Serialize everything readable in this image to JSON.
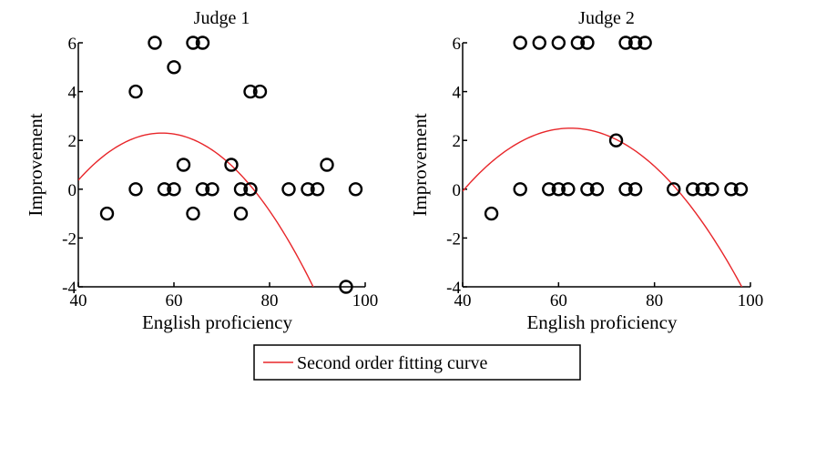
{
  "legend": {
    "label": "Second order fitting curve",
    "color": "#e8262a"
  },
  "chart_data": [
    {
      "type": "scatter",
      "title": "Judge 1",
      "xlabel": "English proficiency",
      "ylabel": "Improvement",
      "xlim": [
        40,
        100
      ],
      "ylim": [
        -4,
        6
      ],
      "xticks": [
        40,
        60,
        80,
        100
      ],
      "yticks": [
        -4,
        -2,
        0,
        2,
        4,
        6
      ],
      "points": [
        [
          46,
          -1
        ],
        [
          52,
          4
        ],
        [
          52,
          0
        ],
        [
          56,
          6
        ],
        [
          58,
          0
        ],
        [
          60,
          5
        ],
        [
          60,
          0
        ],
        [
          62,
          1
        ],
        [
          64,
          6
        ],
        [
          64,
          -1
        ],
        [
          66,
          6
        ],
        [
          66,
          0
        ],
        [
          68,
          0
        ],
        [
          72,
          1
        ],
        [
          74,
          0
        ],
        [
          74,
          -1
        ],
        [
          76,
          4
        ],
        [
          76,
          0
        ],
        [
          78,
          4
        ],
        [
          84,
          0
        ],
        [
          88,
          0
        ],
        [
          90,
          0
        ],
        [
          92,
          1
        ],
        [
          96,
          -4
        ],
        [
          98,
          0
        ]
      ],
      "fit": {
        "label": "Second order fitting curve",
        "vertex_x": 57.5,
        "vertex_y": 2.3,
        "curvature": -0.0063
      }
    },
    {
      "type": "scatter",
      "title": "Judge 2",
      "xlabel": "English proficiency",
      "ylabel": "Improvement",
      "xlim": [
        40,
        100
      ],
      "ylim": [
        -4,
        6
      ],
      "xticks": [
        40,
        60,
        80,
        100
      ],
      "yticks": [
        -4,
        -2,
        0,
        2,
        4,
        6
      ],
      "points": [
        [
          46,
          -1
        ],
        [
          52,
          6
        ],
        [
          52,
          0
        ],
        [
          56,
          6
        ],
        [
          58,
          0
        ],
        [
          60,
          6
        ],
        [
          60,
          0
        ],
        [
          62,
          0
        ],
        [
          64,
          6
        ],
        [
          66,
          6
        ],
        [
          66,
          0
        ],
        [
          68,
          0
        ],
        [
          72,
          2
        ],
        [
          74,
          6
        ],
        [
          74,
          0
        ],
        [
          76,
          6
        ],
        [
          76,
          0
        ],
        [
          78,
          6
        ],
        [
          84,
          0
        ],
        [
          88,
          0
        ],
        [
          90,
          0
        ],
        [
          92,
          0
        ],
        [
          96,
          0
        ],
        [
          98,
          0
        ]
      ],
      "fit": {
        "label": "Second order fitting curve",
        "vertex_x": 62.5,
        "vertex_y": 2.5,
        "curvature": -0.0051
      }
    }
  ]
}
